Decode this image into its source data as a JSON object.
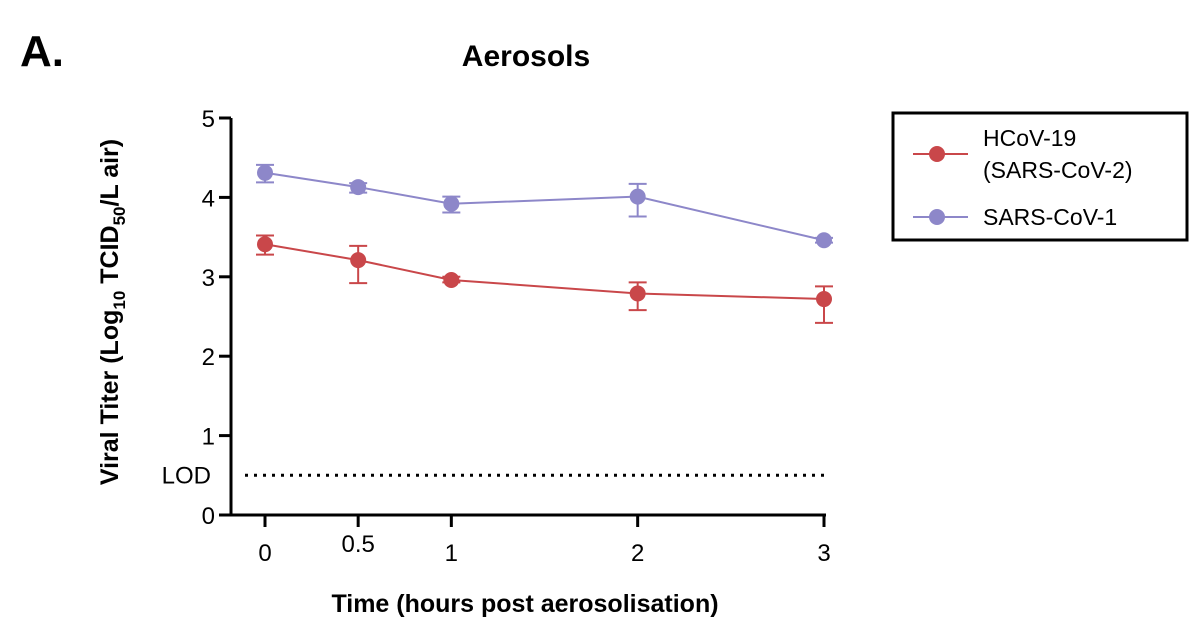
{
  "panel_label": "A.",
  "chart_data": {
    "type": "line",
    "title": "Aerosols",
    "xlabel": "Time (hours post aerosolisation)",
    "ylabel_parts": [
      "Viral Titer (Log",
      "10",
      " TCID",
      "50",
      "/L air)"
    ],
    "x": [
      0,
      0.5,
      1,
      2,
      3
    ],
    "x_ticks": [
      "0",
      "0.5",
      "1",
      "2",
      "3"
    ],
    "y_ticks": [
      "0",
      "1",
      "2",
      "3",
      "4",
      "5"
    ],
    "xlim": [
      0,
      3
    ],
    "ylim": [
      0,
      5
    ],
    "lod": {
      "label": "LOD",
      "value": 0.5
    },
    "series": [
      {
        "name_lines": [
          "HCoV-19",
          "(SARS-CoV-2)"
        ],
        "color": "#c9474a",
        "values": [
          3.41,
          3.21,
          2.96,
          2.79,
          2.72
        ],
        "err_low": [
          3.28,
          2.92,
          2.93,
          2.58,
          2.42
        ],
        "err_high": [
          3.52,
          3.39,
          3.0,
          2.93,
          2.88
        ]
      },
      {
        "name_lines": [
          "SARS-CoV-1"
        ],
        "color": "#8d87c9",
        "values": [
          4.31,
          4.13,
          3.92,
          4.01,
          3.46
        ],
        "err_low": [
          4.19,
          4.06,
          3.81,
          3.76,
          3.43
        ],
        "err_high": [
          4.41,
          4.18,
          4.01,
          4.17,
          3.49
        ]
      }
    ],
    "legend_position": "right"
  }
}
